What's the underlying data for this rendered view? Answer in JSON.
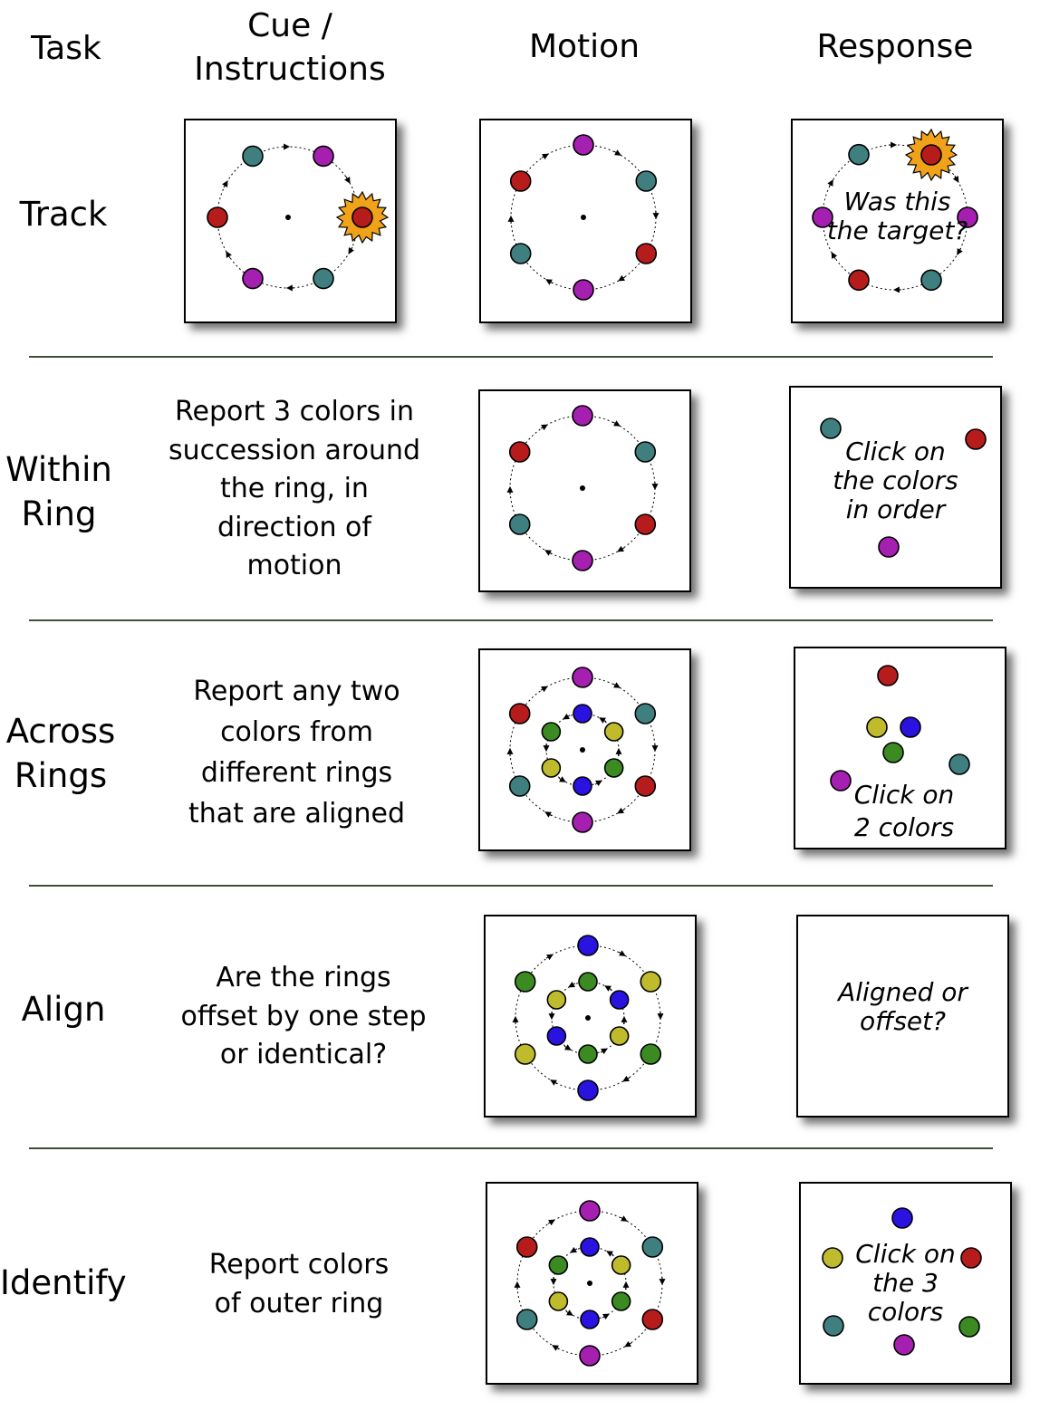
{
  "headers": {
    "task": "Task",
    "cue": [
      "Cue /",
      "Instructions"
    ],
    "motion": "Motion",
    "response": "Response"
  },
  "rows": [
    {
      "task": [
        "Track"
      ],
      "cue": [],
      "response_text": [
        "Was this",
        "the target?"
      ]
    },
    {
      "task": [
        "Within",
        "Ring"
      ],
      "cue": [
        "Report 3 colors in",
        "succession around",
        "the ring, in",
        "direction of",
        "motion"
      ],
      "response_text": [
        "Click on",
        "the colors",
        "in order"
      ]
    },
    {
      "task": [
        "Across",
        "Rings"
      ],
      "cue": [
        "Report any two",
        "colors from",
        "different rings",
        "that are aligned"
      ],
      "response_text": [
        "Click on",
        "2 colors"
      ]
    },
    {
      "task": [
        "Align"
      ],
      "cue": [
        "Are the rings",
        "offset by one step",
        "or identical?"
      ],
      "response_text": [
        "Aligned or",
        "offset?"
      ]
    },
    {
      "task": [
        "Identify"
      ],
      "cue": [
        "Report colors",
        "of outer ring"
      ],
      "response_text": [
        "Click on",
        "the 3",
        "colors"
      ]
    }
  ],
  "colors": {
    "red": "#b61c1c",
    "teal": "#3f7f80",
    "purple": "#a51fb0",
    "blue": "#2a12e0",
    "yellow": "#bfbb2c",
    "green": "#3b8a22",
    "burst": "#f0a21a"
  }
}
